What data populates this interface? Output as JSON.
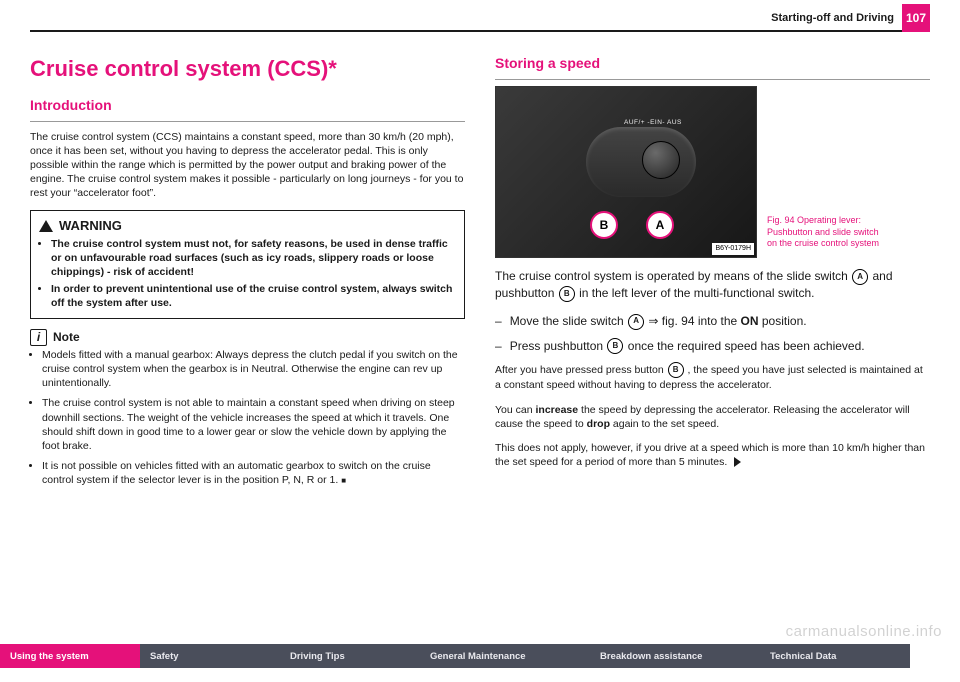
{
  "header": {
    "running_head": "Starting-off and Driving",
    "page_number": "107"
  },
  "left": {
    "title": "Cruise control system (CCS)*",
    "intro_heading": "Introduction",
    "intro_body": "The cruise control system (CCS) maintains a constant speed, more than 30 km/h (20 mph), once it has been set, without you having to depress the accelerator pedal. This is only possible within the range which is permitted by the power output and braking power of the engine. The cruise control system makes it possible - particularly on long journeys - for you to rest your “accelerator foot”.",
    "warning_label": "WARNING",
    "warning_items": {
      "0": "The cruise control system must not, for safety reasons, be used in dense traffic or on unfavourable road surfaces (such as icy roads, slippery roads or loose chippings) - risk of accident!",
      "1": "In order to prevent unintentional use of the cruise control system, always switch off the system after use."
    },
    "note_label": "Note",
    "note_items": {
      "0": "Models fitted with a manual gearbox: Always depress the clutch pedal if you switch on the cruise control system when the gearbox is in Neutral. Otherwise the engine can rev up unintentionally.",
      "1": "The cruise control system is not able to maintain a constant speed when driving on steep downhill sections. The weight of the vehicle increases the speed at which it travels. One should shift down in good time to a lower gear or slow the vehicle down by applying the foot brake.",
      "2": "It is not possible on vehicles fitted with an automatic gearbox to switch on the cruise control system if the selector lever is in the position P, N, R or 1."
    }
  },
  "right": {
    "heading": "Storing a speed",
    "figure": {
      "lever_text": "AUF/+ -EIN- AUS",
      "callout_a": "A",
      "callout_b": "B",
      "img_code": "B6Y-0179H",
      "caption": "Fig. 94   Operating lever: Pushbutton and slide switch on the cruise control system"
    },
    "lead_pre": "The cruise control system is operated by means of the slide switch ",
    "lead_mid": " and pushbutton ",
    "lead_post": " in the left lever of the multi-functional switch.",
    "step1_pre": "Move the slide switch ",
    "step1_mid": " ⇒ fig. 94 into the ",
    "step1_bold": "ON",
    "step1_post": " position.",
    "step2_pre": "Press pushbutton ",
    "step2_post": " once the required speed has been achieved.",
    "after_pre": "After you have pressed press button ",
    "after_post": ", the speed you have just selected is maintained at a constant speed without having to depress the accelerator.",
    "inc_1": "You can ",
    "inc_bold1": "increase",
    "inc_2": " the speed by depressing the accelerator. Releasing the accelerator will cause the speed to ",
    "inc_bold2": "drop",
    "inc_3": " again to the set speed.",
    "final": "This does not apply, however, if you drive at a speed which is more than 10 km/h higher than the set speed for a period of more than 5 minutes."
  },
  "nav": {
    "0": "Using the system",
    "1": "Safety",
    "2": "Driving Tips",
    "3": "General Maintenance",
    "4": "Breakdown assistance",
    "5": "Technical Data"
  },
  "watermark": "carmanualsonline.info"
}
